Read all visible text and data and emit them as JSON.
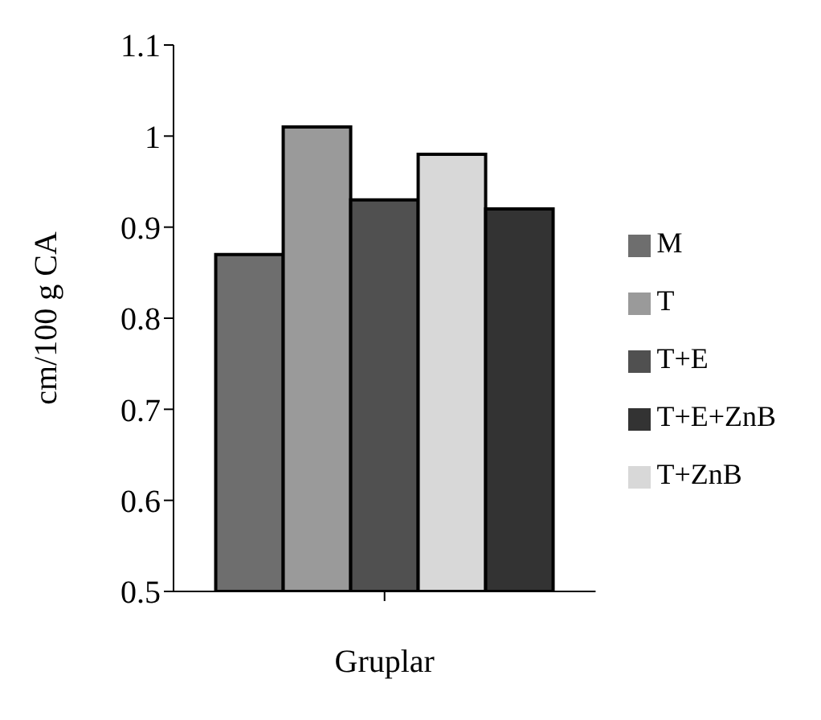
{
  "chart_data": {
    "type": "bar",
    "xlabel": "Gruplar",
    "ylabel": "cm/100 g CA",
    "categories": [
      null
    ],
    "series": [
      {
        "name": "M",
        "color": "#6e6e6e",
        "values": [
          0.87
        ]
      },
      {
        "name": "T",
        "color": "#9a9a9a",
        "values": [
          1.01
        ]
      },
      {
        "name": "T+E",
        "color": "#505050",
        "values": [
          0.93
        ]
      },
      {
        "name": "T+ZnB",
        "color": "#d8d8d8",
        "values": [
          0.98
        ]
      },
      {
        "name": "T+E+ZnB",
        "color": "#333333",
        "values": [
          0.92
        ]
      }
    ],
    "ylim": [
      0.5,
      1.1
    ],
    "yticks": [
      0.5,
      0.6,
      0.7,
      0.8,
      0.9,
      1,
      1.1
    ],
    "legend": "right",
    "grid": false
  }
}
